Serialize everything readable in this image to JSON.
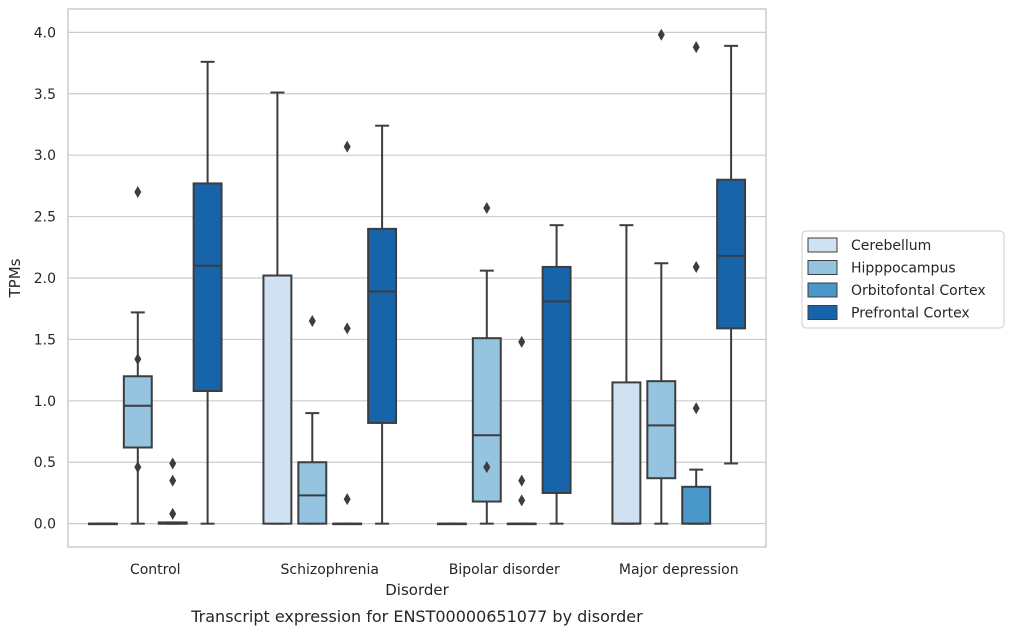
{
  "caption": "Transcript expression for ENST00000651077 by disorder",
  "chart_data": {
    "type": "box",
    "xlabel": "Disorder",
    "ylabel": "TPMs",
    "ylim": [
      -0.19,
      4.19
    ],
    "yticks": [
      "0.0",
      "0.5",
      "1.0",
      "1.5",
      "2.0",
      "2.5",
      "3.0",
      "3.5",
      "4.0"
    ],
    "ytick_values": [
      0,
      0.5,
      1,
      1.5,
      2,
      2.5,
      3,
      3.5,
      4
    ],
    "grid": true,
    "legend_position": "right",
    "categories": [
      "Control",
      "Schizophrenia",
      "Bipolar disorder",
      "Major depression"
    ],
    "series": [
      {
        "name": "Cerebellum",
        "color": "#d0e1f2",
        "boxes": [
          {
            "whislo": 0,
            "q1": 0,
            "med": 0,
            "q3": 0,
            "whishi": 0,
            "fliers": []
          },
          {
            "whislo": 0,
            "q1": 0,
            "med": 2.02,
            "q3": 2.02,
            "whishi": 3.51,
            "fliers": []
          },
          {
            "whislo": 0,
            "q1": 0,
            "med": 0,
            "q3": 0,
            "whishi": 0,
            "fliers": []
          },
          {
            "whislo": 0,
            "q1": 0,
            "med": 0,
            "q3": 1.15,
            "whishi": 2.43,
            "fliers": []
          }
        ]
      },
      {
        "name": "Hipppocampus",
        "color": "#94c4df",
        "boxes": [
          {
            "whislo": 0,
            "q1": 0.62,
            "med": 0.96,
            "q3": 1.2,
            "whishi": 1.72,
            "fliers": [
              2.7,
              1.34,
              0.46
            ]
          },
          {
            "whislo": 0,
            "q1": 0,
            "med": 0.23,
            "q3": 0.5,
            "whishi": 0.9,
            "fliers": [
              1.65
            ]
          },
          {
            "whislo": 0,
            "q1": 0.18,
            "med": 0.72,
            "q3": 1.51,
            "whishi": 2.06,
            "fliers": [
              2.57,
              0.46
            ]
          },
          {
            "whislo": 0,
            "q1": 0.37,
            "med": 0.8,
            "q3": 1.16,
            "whishi": 2.12,
            "fliers": [
              3.98
            ]
          }
        ]
      },
      {
        "name": "Orbitofontal Cortex",
        "color": "#4a98c9",
        "boxes": [
          {
            "whislo": 0,
            "q1": 0,
            "med": 0,
            "q3": 0.01,
            "whishi": 0.01,
            "fliers": [
              0.49,
              0.35,
              0.08
            ]
          },
          {
            "whislo": 0,
            "q1": 0,
            "med": 0,
            "q3": 0,
            "whishi": 0,
            "fliers": [
              3.07,
              1.59,
              0.2
            ]
          },
          {
            "whislo": 0,
            "q1": 0,
            "med": 0,
            "q3": 0,
            "whishi": 0,
            "fliers": [
              1.48,
              0.35,
              0.19
            ]
          },
          {
            "whislo": 0,
            "q1": 0,
            "med": 0,
            "q3": 0.3,
            "whishi": 0.44,
            "fliers": [
              3.88,
              2.09,
              0.94
            ]
          }
        ]
      },
      {
        "name": "Prefrontal Cortex",
        "color": "#1764ab",
        "boxes": [
          {
            "whislo": 0,
            "q1": 1.08,
            "med": 2.1,
            "q3": 2.77,
            "whishi": 3.76,
            "fliers": []
          },
          {
            "whislo": 0,
            "q1": 0.82,
            "med": 1.89,
            "q3": 2.4,
            "whishi": 3.24,
            "fliers": []
          },
          {
            "whislo": 0,
            "q1": 0.25,
            "med": 1.81,
            "q3": 2.09,
            "whishi": 2.43,
            "fliers": []
          },
          {
            "whislo": 0.49,
            "q1": 1.59,
            "med": 2.18,
            "q3": 2.8,
            "whishi": 3.89,
            "fliers": []
          }
        ]
      }
    ]
  }
}
